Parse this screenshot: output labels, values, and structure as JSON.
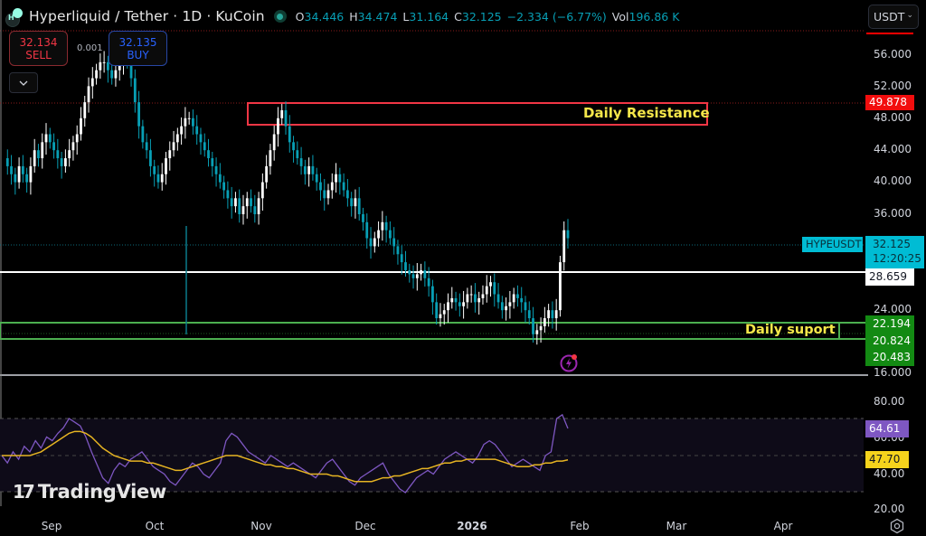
{
  "header": {
    "symbol_title": "Hyperliquid / Tether · 1D · KuCoin",
    "ohlc": {
      "open_label": "O",
      "open": "34.446",
      "high_label": "H",
      "high": "34.474",
      "low_label": "L",
      "low": "31.164",
      "close_label": "C",
      "close": "32.125",
      "change": "−2.334 (−6.77%)",
      "vol_label": "Vol",
      "vol": "196.86 K"
    },
    "market_status_icon": "green-dot-icon"
  },
  "trade": {
    "sell_price": "32.134",
    "sell_label": "SELL",
    "buy_price": "32.135",
    "buy_label": "BUY",
    "spread": "0.001"
  },
  "currency_selector": {
    "value": "USDT"
  },
  "price_axis": {
    "ticks": [
      "56.000",
      "52.000",
      "48.000",
      "44.000",
      "40.000",
      "36.000",
      "24.000",
      "16.000"
    ],
    "tags": {
      "resistance": "49.878",
      "symbol_name": "HYPEUSDT",
      "last_price": "32.125",
      "countdown": "12:20:25",
      "white_line": "28.659",
      "support_1": "22.194",
      "support_2": "20.824",
      "support_3": "20.483"
    }
  },
  "rsi_axis": {
    "ticks": [
      "80.00",
      "60.00",
      "40.00",
      "20.00"
    ],
    "rsi_value": "64.61",
    "rsi_ma_value": "47.70"
  },
  "time_axis": {
    "labels": [
      "Sep",
      "Oct",
      "Nov",
      "Dec",
      "2026",
      "Feb",
      "Mar",
      "Apr"
    ]
  },
  "annotations": {
    "resistance_label": "Daily Resistance",
    "support_label": "Daily suport"
  },
  "branding": {
    "logo_text": "TradingView"
  },
  "colors": {
    "up_candle": "#ffffff",
    "down_candle": "#089fb5",
    "resistance_box": "#f23645",
    "support_lines": "#4caf50",
    "rsi_line": "#7e57c2",
    "rsi_ma_line": "#e6b422",
    "last_price_tag": "#00bcd4"
  }
}
